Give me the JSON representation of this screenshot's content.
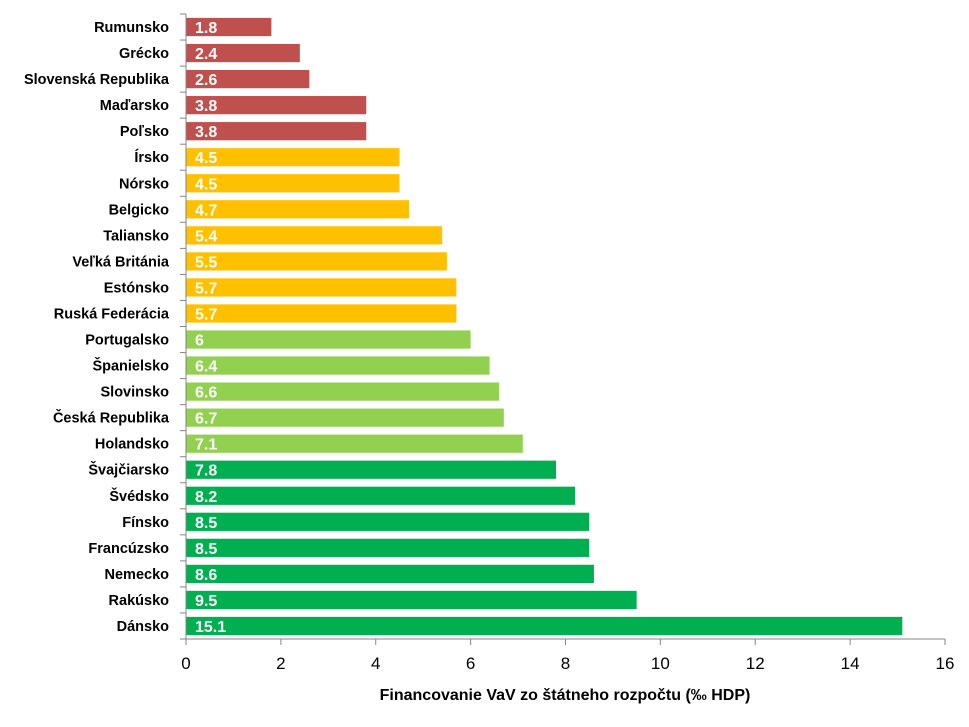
{
  "chart_data": {
    "type": "bar",
    "orientation": "horizontal",
    "xlabel": "Financovanie VaV zo štátneho rozpočtu (‰ HDP)",
    "xlim": [
      0,
      16
    ],
    "xticks": [
      "0",
      "2",
      "4",
      "6",
      "8",
      "10",
      "12",
      "14",
      "16"
    ],
    "grid": false,
    "categories": [
      "Rumunsko",
      "Grécko",
      "Slovenská Republika",
      "Maďarsko",
      "Poľsko",
      "Írsko",
      "Nórsko",
      "Belgicko",
      "Taliansko",
      "Veľká Británia",
      "Estónsko",
      "Ruská Federácia",
      "Portugalsko",
      "Španielsko",
      "Slovinsko",
      "Česká Republika",
      "Holandsko",
      "Švajčiarsko",
      "Švédsko",
      "Fínsko",
      "Francúzsko",
      "Nemecko",
      "Rakúsko",
      "Dánsko"
    ],
    "values": [
      1.8,
      2.4,
      2.6,
      3.8,
      3.8,
      4.5,
      4.5,
      4.7,
      5.4,
      5.5,
      5.7,
      5.7,
      6,
      6.4,
      6.6,
      6.7,
      7.1,
      7.8,
      8.2,
      8.5,
      8.5,
      8.6,
      9.5,
      15.1
    ],
    "data_labels": [
      "1.8",
      "2.4",
      "2.6",
      "3.8",
      "3.8",
      "4.5",
      "4.5",
      "4.7",
      "5.4",
      "5.5",
      "5.7",
      "5.7",
      "6",
      "6.4",
      "6.6",
      "6.7",
      "7.1",
      "7.8",
      "8.2",
      "8.5",
      "8.5",
      "8.6",
      "9.5",
      "15.1"
    ],
    "bar_colors": [
      "#c0504d",
      "#c0504d",
      "#c0504d",
      "#c0504d",
      "#c0504d",
      "#ffc000",
      "#ffc000",
      "#ffc000",
      "#ffc000",
      "#ffc000",
      "#ffc000",
      "#ffc000",
      "#92d050",
      "#92d050",
      "#92d050",
      "#92d050",
      "#92d050",
      "#00b050",
      "#00b050",
      "#00b050",
      "#00b050",
      "#00b050",
      "#00b050",
      "#00b050"
    ],
    "axis_color": "#868686"
  }
}
